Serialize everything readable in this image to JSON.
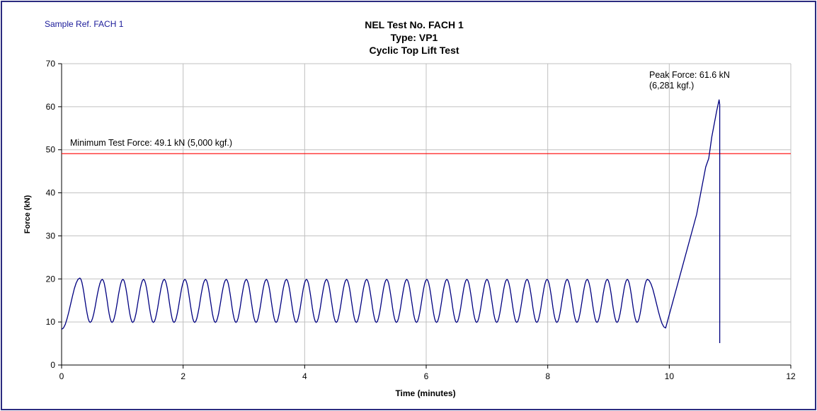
{
  "sample_ref": "Sample Ref. FACH 1",
  "chart_data": {
    "type": "line",
    "title_lines": [
      "NEL Test No. FACH 1",
      "Type: VP1",
      "Cyclic Top Lift Test"
    ],
    "xlabel": "Time (minutes)",
    "ylabel": "Force (kN)",
    "xlim": [
      0,
      12
    ],
    "ylim": [
      0,
      70
    ],
    "xticks": [
      0,
      2,
      4,
      6,
      8,
      10,
      12
    ],
    "yticks": [
      0,
      10,
      20,
      30,
      40,
      50,
      60,
      70
    ],
    "grid": true,
    "series": [
      {
        "color": "#000080",
        "cyclic": {
          "start": [
            0.0,
            8.3
          ],
          "first_peak": [
            0.3,
            20.2
          ],
          "peak_times": [
            0.3,
            0.67,
            1.01,
            1.35,
            1.69,
            2.03,
            2.37,
            2.71,
            3.04,
            3.37,
            3.7,
            4.03,
            4.36,
            4.69,
            5.02,
            5.35,
            5.68,
            6.01,
            6.34,
            6.67,
            7.0,
            7.33,
            7.66,
            7.99,
            8.32,
            8.65,
            8.98,
            9.31,
            9.64
          ],
          "trough_times": [
            0.47,
            0.83,
            1.17,
            1.51,
            1.85,
            2.19,
            2.53,
            2.87,
            3.2,
            3.53,
            3.86,
            4.19,
            4.52,
            4.85,
            5.18,
            5.51,
            5.84,
            6.17,
            6.5,
            6.83,
            7.16,
            7.49,
            7.82,
            8.15,
            8.48,
            8.81,
            9.14,
            9.47
          ],
          "peak_value": 19.9,
          "trough_value": 9.9
        },
        "ramp": [
          [
            9.94,
            8.6
          ],
          [
            10.2,
            22.0
          ],
          [
            10.45,
            35.0
          ],
          [
            10.6,
            46.0
          ],
          [
            10.65,
            48.0
          ],
          [
            10.7,
            53.0
          ],
          [
            10.78,
            59.0
          ],
          [
            10.82,
            61.6
          ]
        ],
        "drop": [
          [
            10.83,
            60.5
          ],
          [
            10.83,
            5.1
          ]
        ]
      },
      {
        "name": "Minimum Test Force",
        "color": "#ff0000",
        "x": [
          0,
          12
        ],
        "values": [
          49.1,
          49.1
        ]
      }
    ],
    "annotations": {
      "min_force": "Minimum Test Force: 49.1 kN (5,000 kgf.)",
      "peak_line1": "Peak Force: 61.6 kN",
      "peak_line2": "(6,281 kgf.)"
    }
  }
}
